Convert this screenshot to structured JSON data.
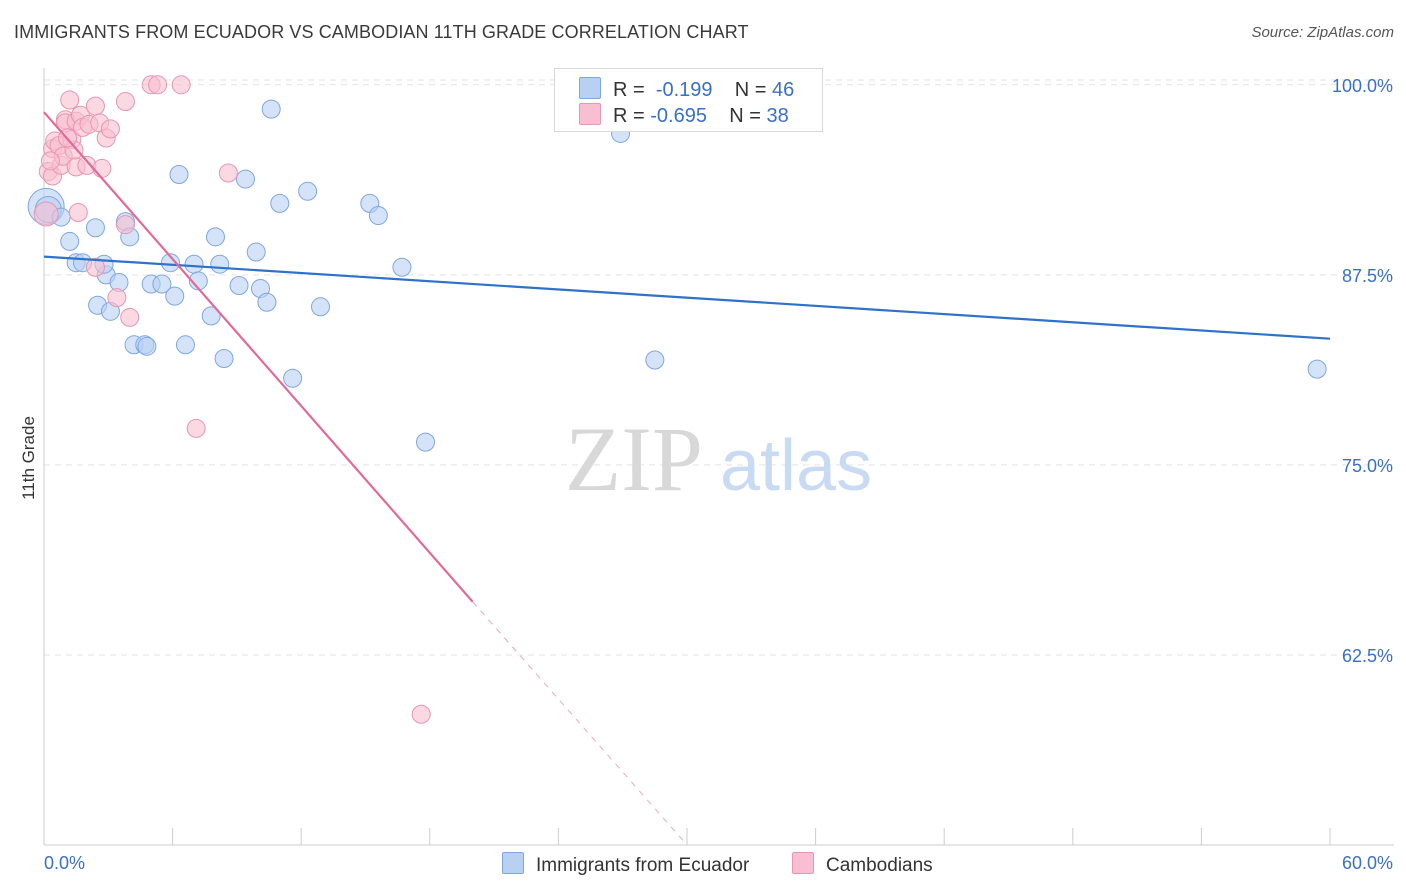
{
  "title": "IMMIGRANTS FROM ECUADOR VS CAMBODIAN 11TH GRADE CORRELATION CHART",
  "source": "Source: ZipAtlas.com",
  "watermark": {
    "zip": "ZIP",
    "atlas": "atlas"
  },
  "colors": {
    "blue_fill": "#b8d1f3",
    "blue_stroke": "#7fa6e0",
    "blue_line": "#2e72c9",
    "pink_fill": "#f7bfd1",
    "pink_stroke": "#e895b2",
    "pink_line": "#e06a98",
    "tick_label": "#3a6fc9",
    "grid": "#e3e3e3"
  },
  "legend": {
    "rows": [
      {
        "r_label": "R =",
        "r_value": "-0.199",
        "n_label": "N =",
        "n_value": "46"
      },
      {
        "r_label": "R =",
        "r_value": "-0.695",
        "n_label": "N =",
        "n_value": "38"
      }
    ]
  },
  "bottom_legend": [
    "Immigrants from Ecuador",
    "Cambodians"
  ],
  "chart_data": {
    "type": "scatter",
    "title": "IMMIGRANTS FROM ECUADOR VS CAMBODIAN 11TH GRADE CORRELATION CHART",
    "xlabel": "",
    "ylabel": "11th Grade",
    "xlim": [
      0,
      60
    ],
    "ylim": [
      50,
      101.5
    ],
    "x_tick_labels": [
      "0.0%",
      "60.0%"
    ],
    "y_ticks": [
      62.5,
      75.0,
      87.5,
      100.0
    ],
    "y_tick_labels": [
      "62.5%",
      "75.0%",
      "87.5%",
      "100.0%"
    ],
    "grid": true,
    "legend_position": "top-center",
    "series": [
      {
        "name": "Immigrants from Ecuador",
        "trend": {
          "x": [
            0,
            60
          ],
          "y": [
            88.7,
            83.3
          ],
          "style": "solid"
        },
        "points": [
          [
            0.1,
            92.0,
            18
          ],
          [
            0.2,
            91.8,
            13
          ],
          [
            0.8,
            91.3,
            9
          ],
          [
            1.2,
            89.7,
            9
          ],
          [
            1.5,
            88.3,
            9
          ],
          [
            1.8,
            88.3,
            9
          ],
          [
            2.4,
            90.6,
            9
          ],
          [
            2.5,
            85.5,
            9
          ],
          [
            2.9,
            87.5,
            9
          ],
          [
            3.1,
            85.1,
            9
          ],
          [
            3.5,
            87.0,
            9
          ],
          [
            3.8,
            91.0,
            9
          ],
          [
            4.0,
            90.0,
            9
          ],
          [
            4.2,
            82.9,
            9
          ],
          [
            4.7,
            82.9,
            9
          ],
          [
            4.8,
            82.8,
            9
          ],
          [
            5.0,
            86.9,
            9
          ],
          [
            5.5,
            86.9,
            9
          ],
          [
            5.9,
            88.3,
            9
          ],
          [
            6.1,
            86.1,
            9
          ],
          [
            6.3,
            94.1,
            9
          ],
          [
            6.6,
            82.9,
            9
          ],
          [
            7.0,
            88.2,
            9
          ],
          [
            7.2,
            87.1,
            9
          ],
          [
            7.8,
            84.8,
            9
          ],
          [
            8.0,
            90.0,
            9
          ],
          [
            8.2,
            88.2,
            9
          ],
          [
            8.4,
            82.0,
            9
          ],
          [
            9.1,
            86.8,
            9
          ],
          [
            9.4,
            93.8,
            9
          ],
          [
            9.9,
            89.0,
            9
          ],
          [
            10.1,
            86.6,
            9
          ],
          [
            10.4,
            85.7,
            9
          ],
          [
            10.6,
            98.4,
            9
          ],
          [
            11.0,
            92.2,
            9
          ],
          [
            11.6,
            80.7,
            9
          ],
          [
            12.3,
            93.0,
            9
          ],
          [
            12.9,
            85.4,
            9
          ],
          [
            15.2,
            92.2,
            9
          ],
          [
            15.6,
            91.4,
            9
          ],
          [
            16.7,
            88.0,
            9
          ],
          [
            17.8,
            76.5,
            9
          ],
          [
            26.9,
            96.8,
            9
          ],
          [
            28.5,
            81.9,
            9
          ],
          [
            59.4,
            81.3,
            9
          ],
          [
            2.8,
            88.2,
            9
          ]
        ]
      },
      {
        "name": "Cambodians",
        "trend": {
          "x": [
            0,
            20
          ],
          "y": [
            98.2,
            66.0
          ],
          "dashed_x": [
            20,
            30
          ],
          "dashed_y": [
            66.0,
            50.0
          ],
          "style": "solid"
        },
        "points": [
          [
            0.1,
            91.5,
            12
          ],
          [
            0.2,
            94.3,
            9
          ],
          [
            0.4,
            95.8,
            9
          ],
          [
            0.4,
            94.0,
            9
          ],
          [
            0.5,
            96.3,
            9
          ],
          [
            0.7,
            96.0,
            9
          ],
          [
            0.8,
            94.7,
            9
          ],
          [
            0.9,
            95.3,
            9
          ],
          [
            1.0,
            97.7,
            9
          ],
          [
            1.0,
            97.5,
            9
          ],
          [
            1.2,
            99.0,
            9
          ],
          [
            1.3,
            96.4,
            9
          ],
          [
            1.4,
            95.7,
            9
          ],
          [
            1.5,
            97.6,
            9
          ],
          [
            1.5,
            94.6,
            9
          ],
          [
            1.6,
            91.6,
            9
          ],
          [
            1.7,
            98.0,
            9
          ],
          [
            1.8,
            97.2,
            9
          ],
          [
            2.0,
            94.7,
            9
          ],
          [
            2.1,
            97.4,
            9
          ],
          [
            2.4,
            98.6,
            9
          ],
          [
            2.4,
            88.0,
            9
          ],
          [
            2.6,
            97.5,
            9
          ],
          [
            2.7,
            94.5,
            9
          ],
          [
            2.9,
            96.5,
            9
          ],
          [
            3.1,
            97.1,
            9
          ],
          [
            3.4,
            86.0,
            9
          ],
          [
            3.8,
            98.9,
            9
          ],
          [
            3.8,
            90.8,
            9
          ],
          [
            4.0,
            84.7,
            9
          ],
          [
            5.0,
            100.0,
            9
          ],
          [
            5.3,
            100.0,
            9
          ],
          [
            6.4,
            100.0,
            9
          ],
          [
            7.1,
            77.4,
            9
          ],
          [
            8.6,
            94.2,
            9
          ],
          [
            17.6,
            58.6,
            9
          ],
          [
            0.3,
            95.0,
            9
          ],
          [
            1.1,
            96.5,
            9
          ]
        ]
      }
    ]
  }
}
